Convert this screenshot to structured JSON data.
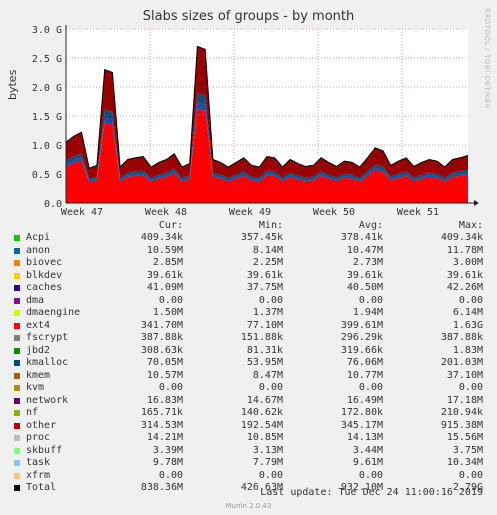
{
  "chart_data": {
    "type": "area",
    "title": "Slabs sizes of groups - by month",
    "ylabel": "bytes",
    "ylim": [
      0,
      3000000000.0
    ],
    "y_ticks": [
      {
        "v": 0,
        "label": "0.0"
      },
      {
        "v": 500000000.0,
        "label": "0.5 G"
      },
      {
        "v": 1000000000.0,
        "label": "1.0 G"
      },
      {
        "v": 1500000000.0,
        "label": "1.5 G"
      },
      {
        "v": 2000000000.0,
        "label": "2.0 G"
      },
      {
        "v": 2500000000.0,
        "label": "2.5 G"
      },
      {
        "v": 3000000000.0,
        "label": "3.0 G"
      }
    ],
    "x_ticks": [
      "Week 47",
      "Week 48",
      "Week 49",
      "Week 50",
      "Week 51"
    ],
    "side_text": "RRDTOOL / TOBI OETIKER",
    "total_series": [
      1050000000.0,
      1150000000.0,
      1220000000.0,
      600000000.0,
      650000000.0,
      2300000000.0,
      2250000000.0,
      620000000.0,
      750000000.0,
      780000000.0,
      800000000.0,
      620000000.0,
      700000000.0,
      750000000.0,
      850000000.0,
      620000000.0,
      680000000.0,
      2700000000.0,
      2650000000.0,
      750000000.0,
      700000000.0,
      620000000.0,
      700000000.0,
      780000000.0,
      650000000.0,
      620000000.0,
      800000000.0,
      780000000.0,
      620000000.0,
      750000000.0,
      680000000.0,
      630000000.0,
      650000000.0,
      780000000.0,
      700000000.0,
      630000000.0,
      720000000.0,
      700000000.0,
      620000000.0,
      780000000.0,
      950000000.0,
      900000000.0,
      650000000.0,
      720000000.0,
      780000000.0,
      630000000.0,
      700000000.0,
      750000000.0,
      720000000.0,
      620000000.0,
      750000000.0,
      780000000.0,
      820000000.0
    ],
    "colors": {
      "ext4": "#ff0000",
      "fscrypt": "#ff8000",
      "kmalloc": "#124d7b",
      "caches": "#1e4aa0",
      "other": "#990000",
      "total": "#000000"
    },
    "columns": [
      "Cur:",
      "Min:",
      "Avg:",
      "Max:"
    ],
    "legend": [
      {
        "name": "Acpi",
        "color": "#00cc00",
        "cur": "409.34k",
        "min": "357.45k",
        "avg": "378.41k",
        "max": "409.34k"
      },
      {
        "name": "anon",
        "color": "#0066b3",
        "cur": "10.59M",
        "min": "8.14M",
        "avg": "10.47M",
        "max": "11.78M"
      },
      {
        "name": "biovec",
        "color": "#ff8000",
        "cur": "2.85M",
        "min": "2.25M",
        "avg": "2.73M",
        "max": "3.00M"
      },
      {
        "name": "blkdev",
        "color": "#ffcc00",
        "cur": "39.61k",
        "min": "39.61k",
        "avg": "39.61k",
        "max": "39.61k"
      },
      {
        "name": "caches",
        "color": "#330099",
        "cur": "41.09M",
        "min": "37.75M",
        "avg": "40.50M",
        "max": "42.26M"
      },
      {
        "name": "dma",
        "color": "#990099",
        "cur": "0.00",
        "min": "0.00",
        "avg": "0.00",
        "max": "0.00"
      },
      {
        "name": "dmaengine",
        "color": "#ccff00",
        "cur": "1.50M",
        "min": "1.37M",
        "avg": "1.94M",
        "max": "6.14M"
      },
      {
        "name": "ext4",
        "color": "#ff0000",
        "cur": "341.70M",
        "min": "77.10M",
        "avg": "399.61M",
        "max": "1.63G"
      },
      {
        "name": "fscrypt",
        "color": "#808080",
        "cur": "387.88k",
        "min": "151.88k",
        "avg": "296.29k",
        "max": "387.88k"
      },
      {
        "name": "jbd2",
        "color": "#008f00",
        "cur": "308.63k",
        "min": "81.31k",
        "avg": "319.66k",
        "max": "1.83M"
      },
      {
        "name": "kmalloc",
        "color": "#00487d",
        "cur": "70.05M",
        "min": "53.95M",
        "avg": "76.06M",
        "max": "201.03M"
      },
      {
        "name": "kmem",
        "color": "#b35a00",
        "cur": "10.57M",
        "min": "8.47M",
        "avg": "10.77M",
        "max": "37.10M"
      },
      {
        "name": "kvm",
        "color": "#b38f00",
        "cur": "0.00",
        "min": "0.00",
        "avg": "0.00",
        "max": "0.00"
      },
      {
        "name": "network",
        "color": "#6b006b",
        "cur": "16.83M",
        "min": "14.67M",
        "avg": "16.49M",
        "max": "17.18M"
      },
      {
        "name": "nf",
        "color": "#8fb300",
        "cur": "165.71k",
        "min": "140.62k",
        "avg": "172.80k",
        "max": "210.94k"
      },
      {
        "name": "other",
        "color": "#b30000",
        "cur": "314.53M",
        "min": "192.54M",
        "avg": "345.17M",
        "max": "915.38M"
      },
      {
        "name": "proc",
        "color": "#bebebe",
        "cur": "14.21M",
        "min": "10.85M",
        "avg": "14.13M",
        "max": "15.56M"
      },
      {
        "name": "skbuff",
        "color": "#80ff80",
        "cur": "3.39M",
        "min": "3.13M",
        "avg": "3.44M",
        "max": "3.75M"
      },
      {
        "name": "task",
        "color": "#80c9ff",
        "cur": "9.78M",
        "min": "7.79M",
        "avg": "9.61M",
        "max": "10.34M"
      },
      {
        "name": "xfrm",
        "color": "#ffc080",
        "cur": "0.00",
        "min": "0.00",
        "avg": "0.00",
        "max": "0.00"
      },
      {
        "name": "Total",
        "color": "#000000",
        "cur": "838.36M",
        "min": "426.63M",
        "avg": "932.10M",
        "max": "2.79G"
      }
    ]
  },
  "footer": {
    "last_update": "Last update:  Tue Dec 24 11:00:16 2019",
    "munin": "Munin 2.0.43"
  }
}
